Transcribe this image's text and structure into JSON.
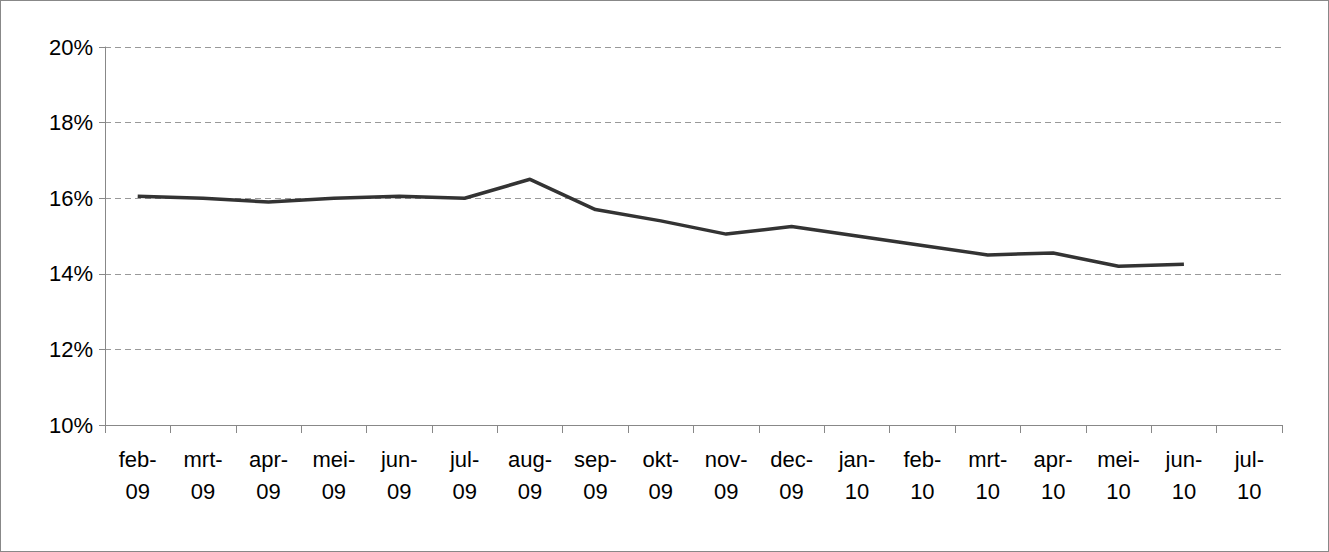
{
  "chart_data": {
    "type": "line",
    "categories": [
      "feb-09",
      "mrt-09",
      "apr-09",
      "mei-09",
      "jun-09",
      "jul-09",
      "aug-09",
      "sep-09",
      "okt-09",
      "nov-09",
      "dec-09",
      "jan-10",
      "feb-10",
      "mrt-10",
      "apr-10",
      "mei-10",
      "jun-10",
      "jul-10"
    ],
    "values": [
      16.05,
      16.0,
      15.9,
      16.0,
      16.05,
      16.0,
      16.5,
      15.7,
      15.4,
      15.05,
      15.25,
      15.0,
      14.75,
      14.5,
      14.55,
      14.2,
      14.25,
      null
    ],
    "color": "#333333",
    "ylim": [
      10,
      20
    ],
    "yticks": [
      {
        "value": 10,
        "label": "10%"
      },
      {
        "value": 12,
        "label": "12%"
      },
      {
        "value": 14,
        "label": "14%"
      },
      {
        "value": 16,
        "label": "16%"
      },
      {
        "value": 18,
        "label": "18%"
      },
      {
        "value": 20,
        "label": "20%"
      }
    ],
    "grid": true
  }
}
